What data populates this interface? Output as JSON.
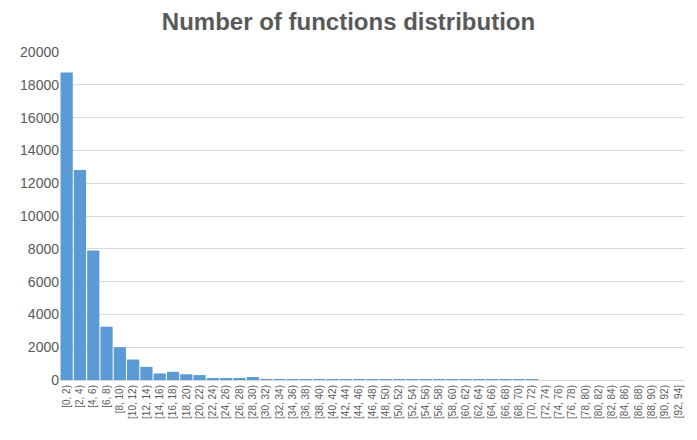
{
  "chart_data": {
    "type": "bar",
    "title": "Number of functions distribution",
    "categories": [
      "[0, 2)",
      "[2, 4)",
      "[4, 6)",
      "[6, 8)",
      "[8, 10)",
      "[10, 12)",
      "[12, 14)",
      "[14, 16)",
      "[16, 18)",
      "[18, 20)",
      "[20, 22)",
      "[22, 24)",
      "[24, 26)",
      "[26, 28)",
      "[28, 30)",
      "[30, 32)",
      "[32, 34)",
      "[34, 36)",
      "[36, 38)",
      "[38, 40)",
      "[40, 42)",
      "[42, 44)",
      "[44, 46)",
      "[46, 48)",
      "[48, 50)",
      "[50, 52)",
      "[52, 54)",
      "[54, 56)",
      "[56, 58)",
      "[58, 60)",
      "[60, 62)",
      "[62, 64)",
      "[64, 66)",
      "[66, 68)",
      "[68, 70)",
      "[70, 72)",
      "[72, 74)",
      "[74, 76)",
      "[76, 78)",
      "[78, 80)",
      "[80, 82)",
      "[82, 84)",
      "[84, 86)",
      "[86, 88)",
      "[88, 90)",
      "[90, 92)",
      "[92, 94]"
    ],
    "values": [
      18750,
      12800,
      7900,
      3250,
      2000,
      1250,
      800,
      400,
      500,
      350,
      300,
      120,
      100,
      100,
      180,
      40,
      30,
      20,
      60,
      10,
      8,
      5,
      5,
      3,
      3,
      2,
      2,
      2,
      1,
      1,
      1,
      1,
      1,
      1,
      1,
      1,
      0,
      0,
      0,
      0,
      0,
      0,
      0,
      0,
      0,
      0,
      0
    ],
    "color": "#5b9bd5",
    "ylim": [
      0,
      20000
    ],
    "yticks": [
      0,
      2000,
      4000,
      6000,
      8000,
      10000,
      12000,
      14000,
      16000,
      18000,
      20000
    ],
    "grid": true
  }
}
